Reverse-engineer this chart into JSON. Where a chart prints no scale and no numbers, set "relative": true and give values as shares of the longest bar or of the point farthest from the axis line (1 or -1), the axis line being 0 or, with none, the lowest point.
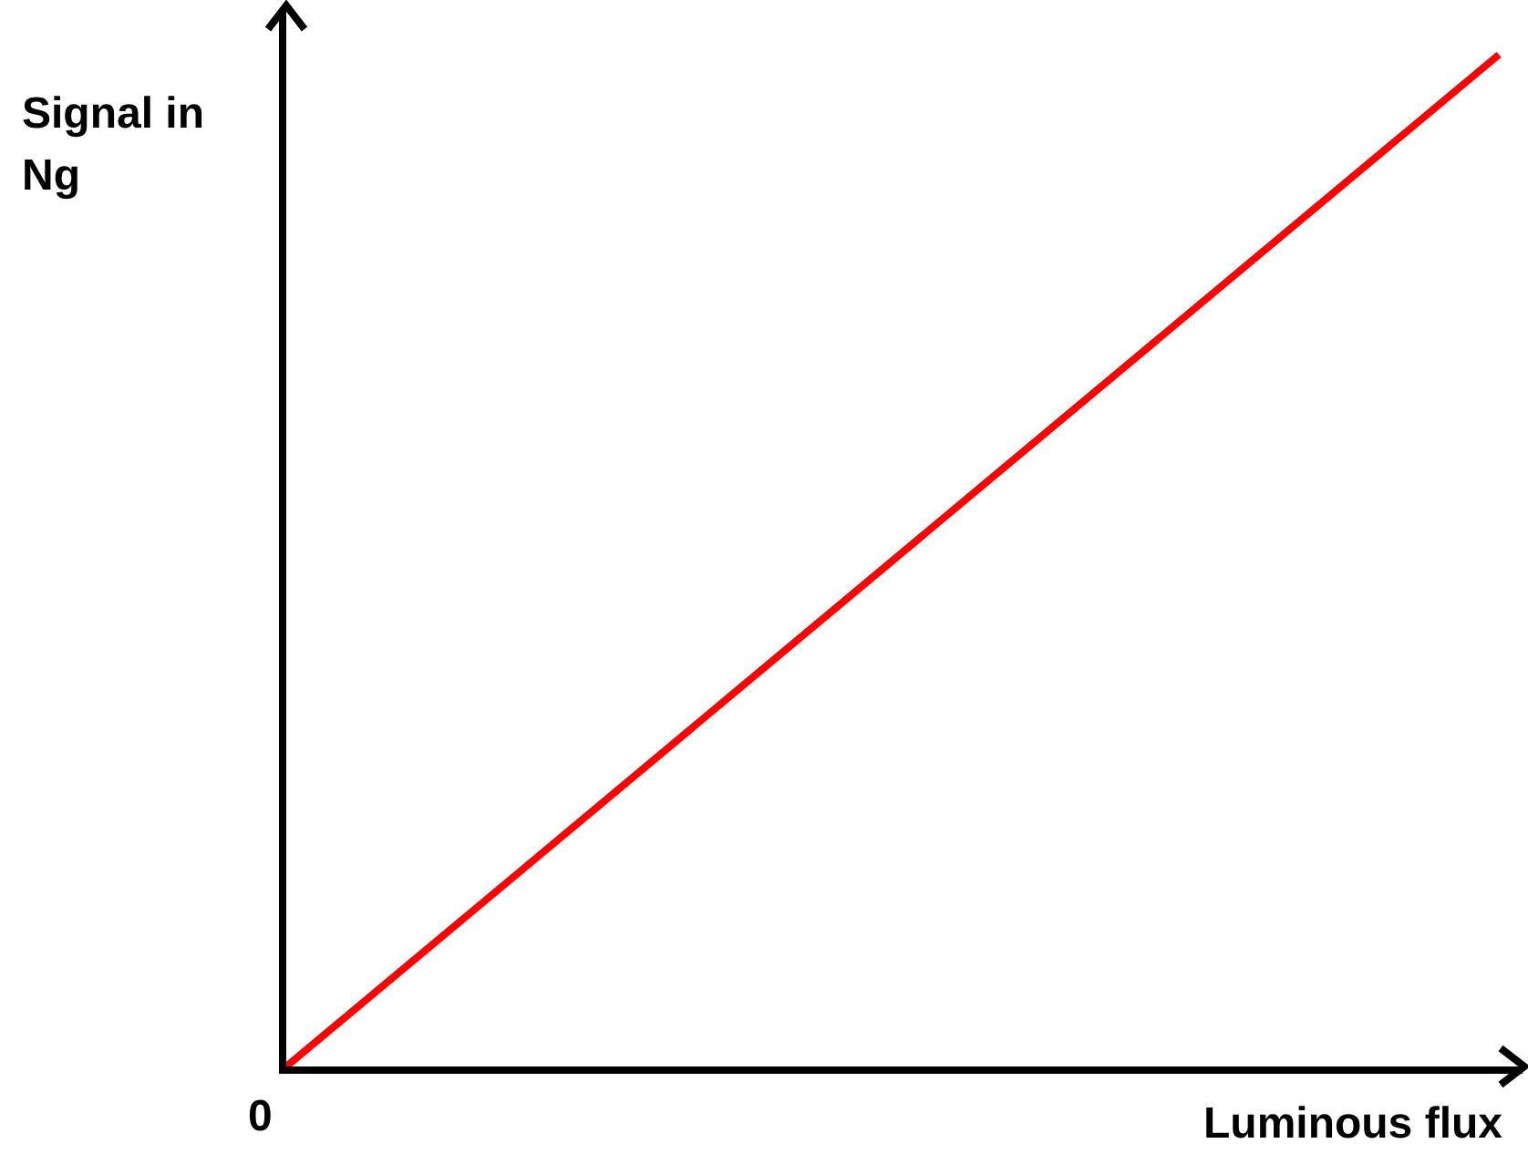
{
  "chart_data": {
    "type": "line",
    "relative": true,
    "xlabel": "Luminous flux",
    "ylabel": "Signal in Ng",
    "annotations": [
      "0"
    ],
    "categories": [
      null,
      null
    ],
    "series": [
      {
        "color": "#ff0000",
        "values": [
          0,
          1
        ]
      }
    ]
  }
}
